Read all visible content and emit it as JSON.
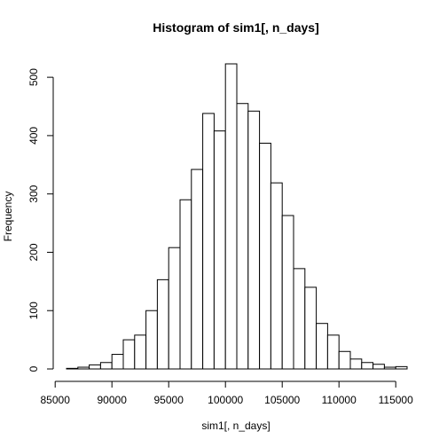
{
  "chart_data": {
    "type": "bar",
    "title": "Histogram of sim1[, n_days]",
    "xlabel": "sim1[, n_days]",
    "ylabel": "Frequency",
    "bin_width": 1000,
    "bins": [
      {
        "start": 86000,
        "end": 87000,
        "count": 1
      },
      {
        "start": 87000,
        "end": 88000,
        "count": 3
      },
      {
        "start": 88000,
        "end": 89000,
        "count": 7
      },
      {
        "start": 89000,
        "end": 90000,
        "count": 11
      },
      {
        "start": 90000,
        "end": 91000,
        "count": 25
      },
      {
        "start": 91000,
        "end": 92000,
        "count": 50
      },
      {
        "start": 92000,
        "end": 93000,
        "count": 58
      },
      {
        "start": 93000,
        "end": 94000,
        "count": 100
      },
      {
        "start": 94000,
        "end": 95000,
        "count": 153
      },
      {
        "start": 95000,
        "end": 96000,
        "count": 208
      },
      {
        "start": 96000,
        "end": 97000,
        "count": 290
      },
      {
        "start": 97000,
        "end": 98000,
        "count": 342
      },
      {
        "start": 98000,
        "end": 99000,
        "count": 438
      },
      {
        "start": 99000,
        "end": 100000,
        "count": 408
      },
      {
        "start": 100000,
        "end": 101000,
        "count": 523
      },
      {
        "start": 101000,
        "end": 102000,
        "count": 455
      },
      {
        "start": 102000,
        "end": 103000,
        "count": 442
      },
      {
        "start": 103000,
        "end": 104000,
        "count": 387
      },
      {
        "start": 104000,
        "end": 105000,
        "count": 319
      },
      {
        "start": 105000,
        "end": 106000,
        "count": 263
      },
      {
        "start": 106000,
        "end": 107000,
        "count": 172
      },
      {
        "start": 107000,
        "end": 108000,
        "count": 140
      },
      {
        "start": 108000,
        "end": 109000,
        "count": 78
      },
      {
        "start": 109000,
        "end": 110000,
        "count": 58
      },
      {
        "start": 110000,
        "end": 111000,
        "count": 30
      },
      {
        "start": 111000,
        "end": 112000,
        "count": 17
      },
      {
        "start": 112000,
        "end": 113000,
        "count": 11
      },
      {
        "start": 113000,
        "end": 114000,
        "count": 8
      },
      {
        "start": 114000,
        "end": 115000,
        "count": 3
      },
      {
        "start": 115000,
        "end": 116000,
        "count": 4
      }
    ],
    "xlim": [
      86000,
      116000
    ],
    "ylim": [
      0,
      523
    ],
    "x_ticks": [
      {
        "value": 85000,
        "label": "85000"
      },
      {
        "value": 90000,
        "label": "90000"
      },
      {
        "value": 95000,
        "label": "95000"
      },
      {
        "value": 100000,
        "label": "100000"
      },
      {
        "value": 105000,
        "label": "105000"
      },
      {
        "value": 110000,
        "label": "110000"
      },
      {
        "value": 115000,
        "label": "115000"
      }
    ],
    "y_ticks": [
      {
        "value": 0,
        "label": "0"
      },
      {
        "value": 100,
        "label": "100"
      },
      {
        "value": 200,
        "label": "200"
      },
      {
        "value": 300,
        "label": "300"
      },
      {
        "value": 400,
        "label": "400"
      },
      {
        "value": 500,
        "label": "500"
      }
    ],
    "grid": false,
    "legend": "none",
    "colors": {
      "bar_fill": "#ffffff",
      "bar_stroke": "#000000"
    }
  }
}
